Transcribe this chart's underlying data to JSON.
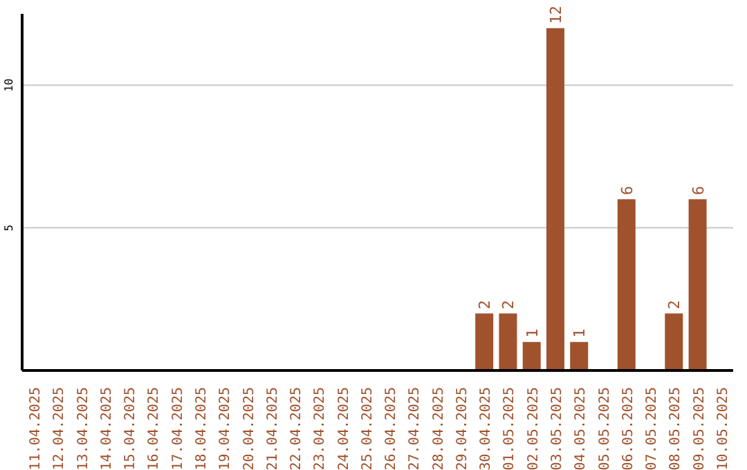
{
  "chart_data": {
    "type": "bar",
    "categories": [
      "11.04.2025",
      "12.04.2025",
      "13.04.2025",
      "14.04.2025",
      "15.04.2025",
      "16.04.2025",
      "17.04.2025",
      "18.04.2025",
      "19.04.2025",
      "20.04.2025",
      "21.04.2025",
      "22.04.2025",
      "23.04.2025",
      "24.04.2025",
      "25.04.2025",
      "26.04.2025",
      "27.04.2025",
      "28.04.2025",
      "29.04.2025",
      "30.04.2025",
      "01.05.2025",
      "02.05.2025",
      "03.05.2025",
      "04.05.2025",
      "05.05.2025",
      "06.05.2025",
      "07.05.2025",
      "08.05.2025",
      "09.05.2025",
      "10.05.2025"
    ],
    "values": [
      null,
      null,
      null,
      null,
      null,
      null,
      null,
      null,
      null,
      null,
      null,
      null,
      null,
      null,
      null,
      null,
      null,
      null,
      null,
      2,
      2,
      1,
      12,
      1,
      null,
      6,
      null,
      2,
      6,
      null
    ],
    "color": "#a0522d",
    "ylim": [
      0,
      12.5
    ],
    "yticks": [
      5,
      10
    ],
    "grid": "y",
    "data_labels": true
  }
}
